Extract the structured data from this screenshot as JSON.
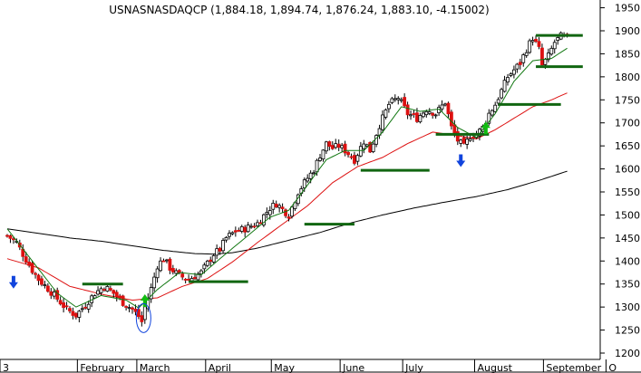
{
  "chart_data": {
    "type": "candlestick",
    "title": "USNASNASDAQCP (1,884.18, 1,894.74, 1,876.24, 1,883.10, -4.15002)",
    "y_ticks": [
      1200,
      1250,
      1300,
      1350,
      1400,
      1450,
      1500,
      1550,
      1600,
      1650,
      1700,
      1750,
      1800,
      1850,
      1900,
      1950
    ],
    "ylim": [
      1180,
      1975
    ],
    "month_labels": [
      "3",
      "February",
      "March",
      "April",
      "May",
      "June",
      "July",
      "August",
      "September",
      "O"
    ],
    "month_starts": [
      0,
      23,
      42,
      64,
      85,
      107,
      127,
      150,
      172,
      192
    ],
    "n_days": 180,
    "series_keypoints": {
      "close": [
        [
          0,
          1455
        ],
        [
          3,
          1440
        ],
        [
          5,
          1415
        ],
        [
          8,
          1380
        ],
        [
          10,
          1360
        ],
        [
          13,
          1340
        ],
        [
          16,
          1318
        ],
        [
          19,
          1295
        ],
        [
          22,
          1282
        ],
        [
          25,
          1305
        ],
        [
          28,
          1330
        ],
        [
          31,
          1345
        ],
        [
          34,
          1330
        ],
        [
          37,
          1310
        ],
        [
          40,
          1295
        ],
        [
          42,
          1280
        ],
        [
          43,
          1268
        ],
        [
          44,
          1300
        ],
        [
          46,
          1340
        ],
        [
          48,
          1390
        ],
        [
          50,
          1405
        ],
        [
          52,
          1385
        ],
        [
          55,
          1368
        ],
        [
          58,
          1360
        ],
        [
          62,
          1375
        ],
        [
          64,
          1395
        ],
        [
          66,
          1415
        ],
        [
          68,
          1425
        ],
        [
          70,
          1450
        ],
        [
          73,
          1465
        ],
        [
          76,
          1470
        ],
        [
          80,
          1482
        ],
        [
          84,
          1515
        ],
        [
          86,
          1525
        ],
        [
          88,
          1512
        ],
        [
          90,
          1500
        ],
        [
          93,
          1550
        ],
        [
          96,
          1580
        ],
        [
          98,
          1598
        ],
        [
          100,
          1630
        ],
        [
          102,
          1655
        ],
        [
          104,
          1645
        ],
        [
          106,
          1650
        ],
        [
          108,
          1640
        ],
        [
          111,
          1620
        ],
        [
          114,
          1660
        ],
        [
          116,
          1640
        ],
        [
          119,
          1695
        ],
        [
          122,
          1740
        ],
        [
          125,
          1755
        ],
        [
          128,
          1720
        ],
        [
          131,
          1710
        ],
        [
          134,
          1730
        ],
        [
          137,
          1720
        ],
        [
          140,
          1745
        ],
        [
          142,
          1690
        ],
        [
          144,
          1662
        ],
        [
          146,
          1648
        ],
        [
          148,
          1672
        ],
        [
          150,
          1675
        ],
        [
          152,
          1690
        ],
        [
          154,
          1720
        ],
        [
          156,
          1740
        ],
        [
          158,
          1770
        ],
        [
          160,
          1800
        ],
        [
          162,
          1815
        ],
        [
          164,
          1830
        ],
        [
          166,
          1860
        ],
        [
          168,
          1885
        ],
        [
          170,
          1860
        ],
        [
          171,
          1825
        ],
        [
          173,
          1845
        ],
        [
          175,
          1875
        ],
        [
          177,
          1888
        ],
        [
          179,
          1883
        ]
      ],
      "ma_short": [
        [
          0,
          1470
        ],
        [
          8,
          1400
        ],
        [
          16,
          1330
        ],
        [
          22,
          1300
        ],
        [
          30,
          1325
        ],
        [
          38,
          1315
        ],
        [
          42,
          1298
        ],
        [
          48,
          1338
        ],
        [
          55,
          1375
        ],
        [
          62,
          1370
        ],
        [
          68,
          1405
        ],
        [
          76,
          1450
        ],
        [
          84,
          1495
        ],
        [
          90,
          1510
        ],
        [
          96,
          1565
        ],
        [
          102,
          1620
        ],
        [
          108,
          1640
        ],
        [
          114,
          1640
        ],
        [
          120,
          1680
        ],
        [
          126,
          1735
        ],
        [
          132,
          1725
        ],
        [
          138,
          1730
        ],
        [
          144,
          1690
        ],
        [
          150,
          1668
        ],
        [
          156,
          1720
        ],
        [
          162,
          1790
        ],
        [
          168,
          1835
        ],
        [
          174,
          1840
        ],
        [
          179,
          1862
        ]
      ],
      "ma_mid": [
        [
          0,
          1405
        ],
        [
          10,
          1385
        ],
        [
          20,
          1345
        ],
        [
          30,
          1328
        ],
        [
          40,
          1315
        ],
        [
          48,
          1320
        ],
        [
          56,
          1345
        ],
        [
          64,
          1362
        ],
        [
          72,
          1398
        ],
        [
          80,
          1440
        ],
        [
          88,
          1480
        ],
        [
          96,
          1520
        ],
        [
          104,
          1570
        ],
        [
          112,
          1605
        ],
        [
          120,
          1625
        ],
        [
          128,
          1655
        ],
        [
          136,
          1680
        ],
        [
          144,
          1672
        ],
        [
          150,
          1665
        ],
        [
          156,
          1685
        ],
        [
          162,
          1710
        ],
        [
          168,
          1735
        ],
        [
          174,
          1750
        ],
        [
          179,
          1765
        ]
      ],
      "ma_long": [
        [
          0,
          1470
        ],
        [
          10,
          1460
        ],
        [
          20,
          1450
        ],
        [
          30,
          1443
        ],
        [
          40,
          1433
        ],
        [
          50,
          1423
        ],
        [
          60,
          1416
        ],
        [
          66,
          1415
        ],
        [
          72,
          1418
        ],
        [
          80,
          1428
        ],
        [
          90,
          1445
        ],
        [
          100,
          1462
        ],
        [
          110,
          1483
        ],
        [
          120,
          1500
        ],
        [
          130,
          1515
        ],
        [
          140,
          1528
        ],
        [
          150,
          1540
        ],
        [
          160,
          1555
        ],
        [
          170,
          1575
        ],
        [
          179,
          1595
        ]
      ]
    },
    "series_colors": {
      "ma_short": "#117711",
      "ma_mid": "#dd1111",
      "ma_long": "#000000",
      "candle_up": "#ffffff",
      "candle_down": "#dd1111",
      "candle_outline": "#000000"
    },
    "support_levels": [
      {
        "from": 24,
        "to": 37,
        "level": 1350
      },
      {
        "from": 58,
        "to": 77,
        "level": 1355
      },
      {
        "from": 95,
        "to": 111,
        "level": 1480
      },
      {
        "from": 113,
        "to": 135,
        "level": 1597
      },
      {
        "from": 137,
        "to": 154,
        "level": 1675
      },
      {
        "from": 157,
        "to": 177,
        "level": 1740
      },
      {
        "from": 169,
        "to": 184,
        "level": 1822
      },
      {
        "from": 169,
        "to": 184,
        "level": 1890
      }
    ],
    "support_color": "#116611",
    "arrows": [
      {
        "day": 2,
        "value": 1348,
        "direction": "down",
        "color": "#1144dd"
      },
      {
        "day": 44,
        "value": 1320,
        "direction": "up",
        "color": "#11bb11"
      },
      {
        "day": 145,
        "value": 1612,
        "direction": "down",
        "color": "#1144dd"
      },
      {
        "day": 153,
        "value": 1695,
        "direction": "up",
        "color": "#11bb11"
      }
    ],
    "ellipse": {
      "day": 43,
      "value": 1280,
      "color": "#1144dd"
    }
  }
}
